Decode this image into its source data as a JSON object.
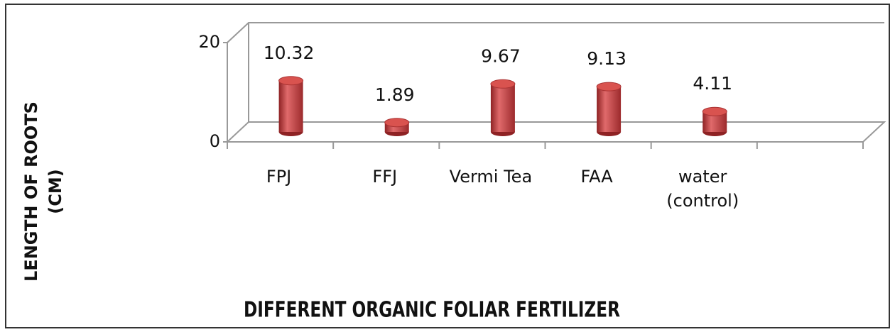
{
  "chart_data": {
    "type": "bar3d",
    "x_label": "DIFFERENT ORGANIC FOLIAR FERTILIZER",
    "y_label": "LENGTH OF ROOTS (CM)",
    "categories": [
      "FPJ",
      "FFJ",
      "Vermi Tea",
      "FAA",
      "water (control)",
      null
    ],
    "values": [
      10.32,
      1.89,
      9.67,
      9.13,
      4.11,
      null
    ],
    "color": "#c0393b",
    "ylim": [
      0,
      20
    ],
    "yticks": [
      0,
      20
    ]
  }
}
